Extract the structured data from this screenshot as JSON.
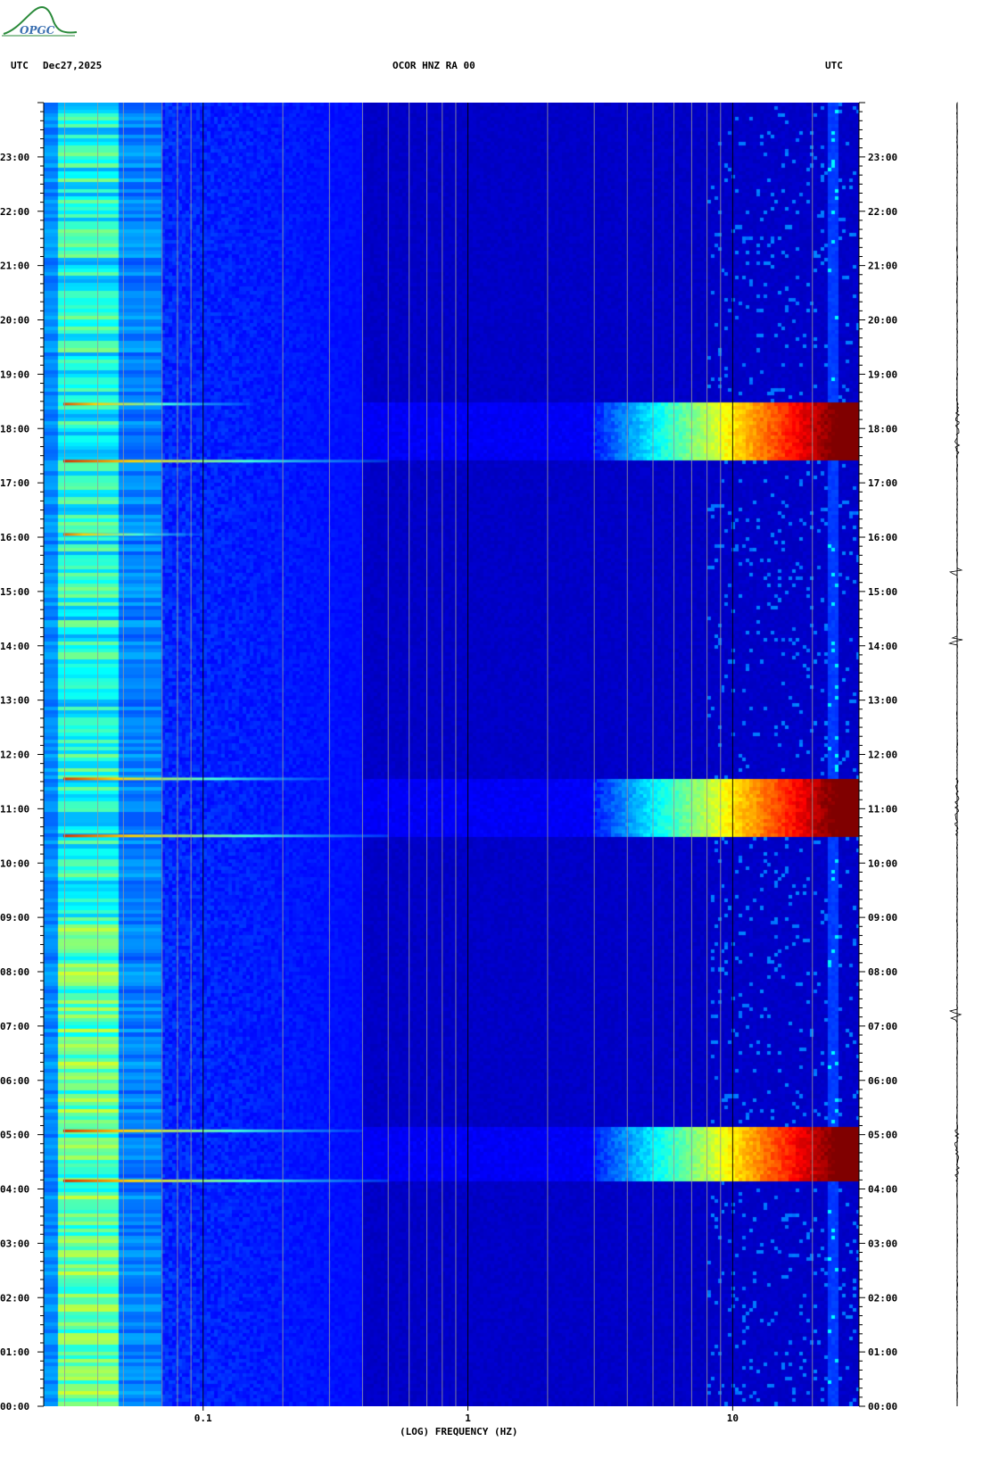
{
  "header": {
    "left_utc": "UTC",
    "date": "Dec27,2025",
    "station": "OCOR HNZ RA 00",
    "right_utc": "UTC"
  },
  "logo": {
    "text": "OPGC"
  },
  "chart_data": {
    "type": "heatmap",
    "title": "OCOR HNZ RA 00",
    "xlabel": "(LOG) FREQUENCY (HZ)",
    "x_scale": "log",
    "xlim_hz": [
      0.025,
      30
    ],
    "x_ticks": [
      {
        "value": 0.1,
        "label": "0.1"
      },
      {
        "value": 1,
        "label": "1"
      },
      {
        "value": 10,
        "label": "10"
      }
    ],
    "y_time_ticks": [
      "00:00",
      "01:00",
      "02:00",
      "03:00",
      "04:00",
      "05:00",
      "06:00",
      "07:00",
      "08:00",
      "09:00",
      "10:00",
      "11:00",
      "12:00",
      "13:00",
      "14:00",
      "15:00",
      "16:00",
      "17:00",
      "18:00",
      "19:00",
      "20:00",
      "21:00",
      "22:00",
      "23:00"
    ],
    "ylim_hours": [
      0,
      24
    ],
    "y_unit": "UTC",
    "colormap": [
      "#00008f",
      "#0000ff",
      "#0080ff",
      "#00ffff",
      "#80ff80",
      "#ffff00",
      "#ff8000",
      "#ff0000",
      "#800000"
    ],
    "high_energy_bands": [
      {
        "start_hour": 4.15,
        "end_hour": 5.1,
        "min_freq_hz": 3
      },
      {
        "start_hour": 10.5,
        "end_hour": 11.55,
        "min_freq_hz": 3
      },
      {
        "start_hour": 17.4,
        "end_hour": 18.45,
        "min_freq_hz": 3
      }
    ],
    "bright_lines": [
      {
        "hour": 4.15,
        "extent_hz": 0.5
      },
      {
        "hour": 5.07,
        "extent_hz": 0.4
      },
      {
        "hour": 10.5,
        "extent_hz": 0.5
      },
      {
        "hour": 11.55,
        "extent_hz": 0.3
      },
      {
        "hour": 16.05,
        "extent_hz": 0.1
      },
      {
        "hour": 17.4,
        "extent_hz": 0.5
      },
      {
        "hour": 18.45,
        "extent_hz": 0.15
      }
    ],
    "grid": true
  }
}
